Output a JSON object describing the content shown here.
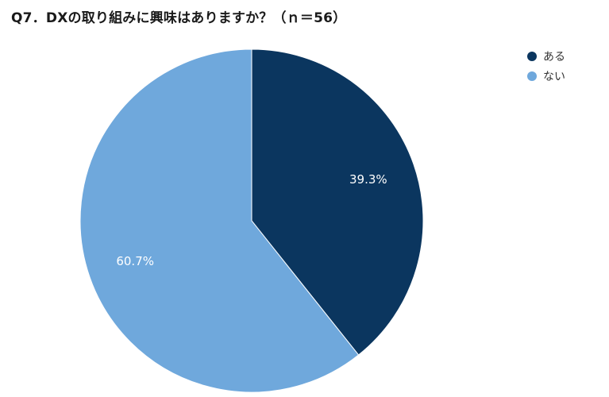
{
  "title": "Q7．DXの取り組みに興味はありますか？（ｎ＝56）",
  "chart_data": {
    "type": "pie",
    "title": "Q7．DXの取り組みに興味はありますか？（ｎ＝56）",
    "slices": [
      {
        "label": "ある",
        "value": 39.3,
        "data_label": "39.3%",
        "color": "#0b365f"
      },
      {
        "label": "ない",
        "value": 60.7,
        "data_label": "60.7%",
        "color": "#6fa8dc"
      }
    ],
    "legend_position": "top-right",
    "start_angle": "12 o'clock",
    "direction": "clockwise",
    "label_color": "#ffffff"
  }
}
